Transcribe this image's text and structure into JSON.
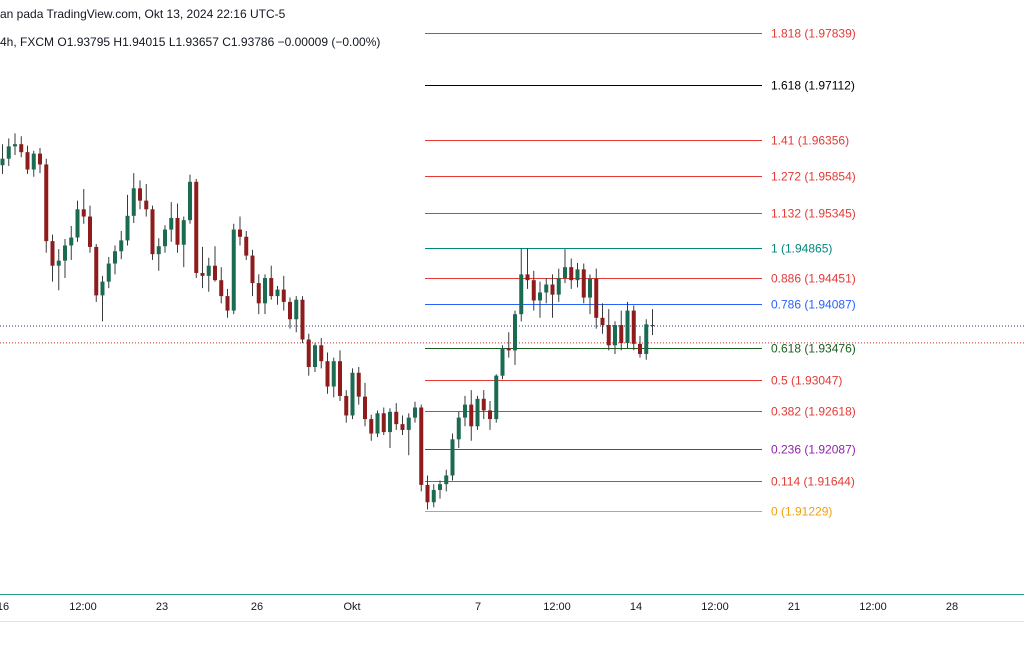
{
  "header": {
    "source": "an pada TradingView.com, Okt 13, 2024 22:16 UTC-5",
    "symbol_info": "4h, FXCM",
    "open": "O1.93795",
    "high": "H1.94015",
    "low": "L1.93657",
    "close": "C1.93786",
    "change": "−0.00009 (−0.00%)"
  },
  "colors": {
    "up_candle": "#1b6b52",
    "down_candle": "#8e1c1c",
    "wick": "#3a3a3a",
    "price_line_blue": "#1e3a6e",
    "price_line_red": "#c62828",
    "axis_line": "#2a9d8f"
  },
  "time_axis": {
    "ticks": [
      {
        "label": "16"
      },
      {
        "label": "12:00"
      },
      {
        "label": "23"
      },
      {
        "label": "26"
      },
      {
        "label": "Okt"
      },
      {
        "label": "7"
      },
      {
        "label": "12:00"
      },
      {
        "label": "14"
      },
      {
        "label": "12:00"
      },
      {
        "label": "21"
      },
      {
        "label": "12:00"
      },
      {
        "label": "28"
      }
    ]
  },
  "fibonacci": {
    "levels": [
      {
        "ratio": "1.818",
        "price": "1.97839",
        "label": "1.818 (1.97839)",
        "color": "#e53935"
      },
      {
        "ratio": "1.618",
        "price": "1.97112",
        "label": "1.618 (1.97112)",
        "color": "#000000"
      },
      {
        "ratio": "1.41",
        "price": "1.96356",
        "label": "1.41 (1.96356)",
        "color": "#e53935"
      },
      {
        "ratio": "1.272",
        "price": "1.95854",
        "label": "1.272 (1.95854)",
        "color": "#e53935"
      },
      {
        "ratio": "1.132",
        "price": "1.95345",
        "label": "1.132 (1.95345)",
        "color": "#e53935"
      },
      {
        "ratio": "1",
        "price": "1.94865",
        "label": "1 (1.94865)",
        "color": "#00897b"
      },
      {
        "ratio": "0.886",
        "price": "1.94451",
        "label": "0.886 (1.94451)",
        "color": "#e53935"
      },
      {
        "ratio": "0.786",
        "price": "1.94087",
        "label": "0.786 (1.94087)",
        "color": "#2962ff"
      },
      {
        "ratio": "0.618",
        "price": "1.93476",
        "label": "0.618 (1.93476)",
        "color": "#1b5e20"
      },
      {
        "ratio": "0.5",
        "price": "1.93047",
        "label": "0.5 (1.93047)",
        "color": "#e53935"
      },
      {
        "ratio": "0.382",
        "price": "1.92618",
        "label": "0.382 (1.92618)",
        "color": "#e53935"
      },
      {
        "ratio": "0.236",
        "price": "1.92087",
        "label": "0.236 (1.92087)",
        "color": "#8e24aa"
      },
      {
        "ratio": "0.114",
        "price": "1.91644",
        "label": "0.114 (1.91644)",
        "color": "#e53935"
      },
      {
        "ratio": "0",
        "price": "1.91229",
        "label": "0 (1.91229)",
        "color": "#f59e0b"
      }
    ]
  },
  "price_lines": {
    "last_price": "1.93786",
    "reference_price": "1.93554"
  },
  "candles": [
    [
      1.9601,
      1.963,
      1.9589,
      1.961
    ],
    [
      1.961,
      1.9638,
      1.96,
      1.9627
    ],
    [
      1.9627,
      1.9645,
      1.9615,
      1.963
    ],
    [
      1.963,
      1.9641,
      1.9612,
      1.9619
    ],
    [
      1.9619,
      1.9628,
      1.9589,
      1.9595
    ],
    [
      1.9595,
      1.9621,
      1.9585,
      1.9617
    ],
    [
      1.9617,
      1.9625,
      1.959,
      1.9602
    ],
    [
      1.9602,
      1.961,
      1.948,
      1.9496
    ],
    [
      1.9496,
      1.9505,
      1.944,
      1.9462
    ],
    [
      1.9462,
      1.9485,
      1.9428,
      1.9469
    ],
    [
      1.9469,
      1.9499,
      1.9445,
      1.949
    ],
    [
      1.949,
      1.9517,
      1.947,
      1.9501
    ],
    [
      1.9501,
      1.9552,
      1.9495,
      1.954
    ],
    [
      1.954,
      1.9568,
      1.952,
      1.953
    ],
    [
      1.953,
      1.9545,
      1.948,
      1.9488
    ],
    [
      1.9488,
      1.9492,
      1.9412,
      1.9421
    ],
    [
      1.9421,
      1.9448,
      1.9385,
      1.944
    ],
    [
      1.944,
      1.9474,
      1.9431,
      1.9465
    ],
    [
      1.9465,
      1.949,
      1.945,
      1.9482
    ],
    [
      1.9482,
      1.951,
      1.9471,
      1.9497
    ],
    [
      1.9497,
      1.956,
      1.949,
      1.9531
    ],
    [
      1.9531,
      1.959,
      1.9521,
      1.9569
    ],
    [
      1.9569,
      1.958,
      1.954,
      1.9552
    ],
    [
      1.9552,
      1.9575,
      1.953,
      1.954
    ],
    [
      1.954,
      1.9545,
      1.947,
      1.9478
    ],
    [
      1.9478,
      1.95,
      1.9455,
      1.9489
    ],
    [
      1.9489,
      1.9518,
      1.948,
      1.9512
    ],
    [
      1.9512,
      1.955,
      1.9495,
      1.9528
    ],
    [
      1.9528,
      1.9548,
      1.948,
      1.9491
    ],
    [
      1.9491,
      1.953,
      1.946,
      1.9525
    ],
    [
      1.9525,
      1.9588,
      1.952,
      1.9578
    ],
    [
      1.9578,
      1.9582,
      1.9445,
      1.9452
    ],
    [
      1.9452,
      1.9488,
      1.9431,
      1.9448
    ],
    [
      1.9448,
      1.9473,
      1.9426,
      1.9462
    ],
    [
      1.9462,
      1.9489,
      1.944,
      1.9442
    ],
    [
      1.9442,
      1.946,
      1.941,
      1.942
    ],
    [
      1.942,
      1.943,
      1.939,
      1.94
    ],
    [
      1.94,
      1.952,
      1.9395,
      1.9512
    ],
    [
      1.9512,
      1.953,
      1.949,
      1.9502
    ],
    [
      1.9502,
      1.951,
      1.947,
      1.9476
    ],
    [
      1.9476,
      1.9484,
      1.942,
      1.9438
    ],
    [
      1.9438,
      1.945,
      1.9395,
      1.941
    ],
    [
      1.941,
      1.945,
      1.9395,
      1.9445
    ],
    [
      1.9445,
      1.9462,
      1.9415,
      1.942
    ],
    [
      1.942,
      1.9434,
      1.9408,
      1.9429
    ],
    [
      1.9429,
      1.9448,
      1.94,
      1.9412
    ],
    [
      1.9412,
      1.9418,
      1.9375,
      1.9388
    ],
    [
      1.9388,
      1.942,
      1.937,
      1.9415
    ],
    [
      1.9415,
      1.942,
      1.9355,
      1.936
    ],
    [
      1.936,
      1.9368,
      1.931,
      1.9322
    ],
    [
      1.9322,
      1.9355,
      1.9315,
      1.9352
    ],
    [
      1.9352,
      1.9362,
      1.932,
      1.933
    ],
    [
      1.933,
      1.9342,
      1.9285,
      1.9295
    ],
    [
      1.9295,
      1.9335,
      1.928,
      1.933
    ],
    [
      1.933,
      1.9345,
      1.9275,
      1.9282
    ],
    [
      1.9282,
      1.929,
      1.9245,
      1.9255
    ],
    [
      1.9255,
      1.932,
      1.925,
      1.9314
    ],
    [
      1.9314,
      1.9322,
      1.927,
      1.9281
    ],
    [
      1.9281,
      1.93,
      1.924,
      1.925
    ],
    [
      1.925,
      1.9256,
      1.922,
      1.923
    ],
    [
      1.923,
      1.9262,
      1.9225,
      1.9258
    ],
    [
      1.9258,
      1.9266,
      1.9228,
      1.9232
    ],
    [
      1.9232,
      1.9265,
      1.921,
      1.926
    ],
    [
      1.926,
      1.9272,
      1.9235,
      1.9243
    ],
    [
      1.9243,
      1.9255,
      1.9228,
      1.9235
    ],
    [
      1.9235,
      1.9258,
      1.92,
      1.9252
    ],
    [
      1.9252,
      1.9274,
      1.9245,
      1.9266
    ],
    [
      1.9266,
      1.927,
      1.915,
      1.9159
    ],
    [
      1.9159,
      1.9172,
      1.9125,
      1.9135
    ],
    [
      1.9135,
      1.916,
      1.9128,
      1.9152
    ],
    [
      1.9152,
      1.9165,
      1.914,
      1.916
    ],
    [
      1.916,
      1.918,
      1.915,
      1.9172
    ],
    [
      1.9172,
      1.923,
      1.9165,
      1.9222
    ],
    [
      1.9222,
      1.926,
      1.921,
      1.9252
    ],
    [
      1.9252,
      1.9282,
      1.924,
      1.927
    ],
    [
      1.927,
      1.929,
      1.922,
      1.924
    ],
    [
      1.924,
      1.9282,
      1.9235,
      1.9278
    ],
    [
      1.9278,
      1.929,
      1.925,
      1.9262
    ],
    [
      1.9262,
      1.9275,
      1.9235,
      1.925
    ],
    [
      1.925,
      1.9312,
      1.9245,
      1.931
    ],
    [
      1.931,
      1.9352,
      1.9305,
      1.9348
    ],
    [
      1.9348,
      1.937,
      1.9335,
      1.9345
    ],
    [
      1.9345,
      1.94,
      1.9325,
      1.9395
    ],
    [
      1.9395,
      1.9486,
      1.9385,
      1.945
    ],
    [
      1.945,
      1.9486,
      1.943,
      1.9442
    ],
    [
      1.9442,
      1.9455,
      1.94,
      1.9414
    ],
    [
      1.9414,
      1.944,
      1.939,
      1.9425
    ],
    [
      1.9425,
      1.9445,
      1.941,
      1.9436
    ],
    [
      1.9436,
      1.945,
      1.939,
      1.9422
    ],
    [
      1.9422,
      1.9458,
      1.9412,
      1.9445
    ],
    [
      1.9445,
      1.9485,
      1.9438,
      1.946
    ],
    [
      1.946,
      1.9472,
      1.943,
      1.9442
    ],
    [
      1.9442,
      1.9466,
      1.9432,
      1.9457
    ],
    [
      1.9457,
      1.9465,
      1.941,
      1.9418
    ],
    [
      1.9418,
      1.945,
      1.9395,
      1.9444
    ],
    [
      1.9444,
      1.9458,
      1.9375,
      1.939
    ],
    [
      1.939,
      1.941,
      1.9368,
      1.938
    ],
    [
      1.938,
      1.9402,
      1.9345,
      1.9352
    ],
    [
      1.9352,
      1.9385,
      1.934,
      1.938
    ],
    [
      1.938,
      1.94,
      1.9345,
      1.9355
    ],
    [
      1.9355,
      1.9412,
      1.9348,
      1.94
    ],
    [
      1.94,
      1.9407,
      1.9345,
      1.9354
    ],
    [
      1.9354,
      1.9365,
      1.9335,
      1.934
    ],
    [
      1.934,
      1.9388,
      1.9332,
      1.9381
    ],
    [
      1.938,
      1.9402,
      1.9366,
      1.9379
    ]
  ]
}
